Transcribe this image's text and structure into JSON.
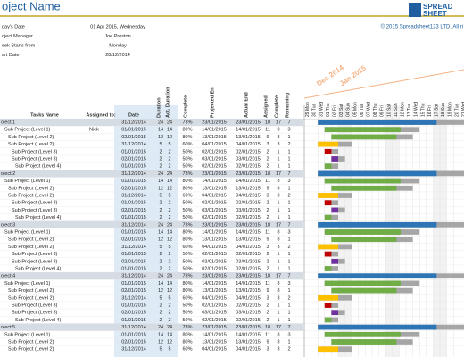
{
  "header": {
    "title": "oject Name",
    "logo_top": "SPREAD",
    "logo_bottom": "SHEET",
    "copyright": "© 2015 Spreadsheet123 LTD. All ri"
  },
  "info": [
    {
      "label": "day's Date",
      "value": "01 Apr 2015, Wednesday"
    },
    {
      "label": "oject Manager",
      "value": "Joe Preston"
    },
    {
      "label": "eek Starts from",
      "value": "Monday"
    },
    {
      "label": "art Date",
      "value": "28/12/2014"
    }
  ],
  "timeline": {
    "months": [
      "Dec 2014",
      "Jan 2015"
    ],
    "days": [
      "29 Mon",
      "30 Tue",
      "31 Wed",
      "01 Thu",
      "02 Fri",
      "03 Sat",
      "04 Sun",
      "05 Mon",
      "06 Tue",
      "07 Wed",
      "08 Thu",
      "09 Fri",
      "10 Sat",
      "11 Sun",
      "12 Mon",
      "13 Tue",
      "14 Wed",
      "15 Thu",
      "16 Fri",
      "17 Sat",
      "18 Sun",
      "19 Mon",
      "20 Tue",
      "21 Wed",
      "22 Thu",
      "23 Fri"
    ]
  },
  "table": {
    "columns": [
      "Tasks Name",
      "Assigned to:",
      "Date",
      "Duration",
      "Act. Duration",
      "Complete",
      "Projected En",
      "Actual End",
      "Assigned",
      "Complete",
      "Remaining"
    ],
    "rows": [
      {
        "cells": [
          "oject 1",
          null,
          "31/12/2014",
          24,
          24,
          "73%",
          "23/01/2015",
          "23/01/2015",
          18,
          17,
          7
        ],
        "color": "#2e75b6"
      },
      {
        "cells": [
          "Sub Project (Level 1)",
          "Nick",
          "01/01/2015",
          14,
          14,
          "80%",
          "14/01/2015",
          "14/01/2015",
          11,
          8,
          3
        ],
        "color": "#70ad47"
      },
      {
        "cells": [
          "Sub Project (Level 2)",
          null,
          "02/01/2015",
          12,
          12,
          "80%",
          "13/01/2015",
          "13/01/2015",
          9,
          8,
          1
        ],
        "color": "#70ad47"
      },
      {
        "cells": [
          "Sub Project (Level 2)",
          null,
          "31/12/2014",
          5,
          5,
          "60%",
          "04/01/2015",
          "04/01/2015",
          3,
          3,
          2
        ],
        "color": "#ffc000"
      },
      {
        "cells": [
          "Sub Project (Level 3)",
          null,
          "01/01/2015",
          2,
          2,
          "50%",
          "02/01/2015",
          "02/01/2015",
          2,
          1,
          1
        ],
        "color": "#c00000"
      },
      {
        "cells": [
          "Sub Project (Level 3)",
          null,
          "02/01/2015",
          2,
          2,
          "50%",
          "03/01/2015",
          "03/01/2015",
          2,
          1,
          1
        ],
        "color": "#7030a0"
      },
      {
        "cells": [
          "Sub Project (Level 4)",
          null,
          "01/01/2015",
          2,
          2,
          "50%",
          "02/01/2015",
          "02/01/2015",
          2,
          1,
          1
        ],
        "color": "#70ad47"
      },
      {
        "cells": [
          "oject 2",
          null,
          "31/12/2014",
          24,
          24,
          "73%",
          "23/01/2015",
          "23/01/2015",
          18,
          17,
          7
        ],
        "color": "#2e75b6"
      },
      {
        "cells": [
          "Sub Project (Level 1)",
          null,
          "01/01/2015",
          14,
          14,
          "80%",
          "14/01/2015",
          "14/01/2015",
          11,
          8,
          3
        ],
        "color": "#70ad47"
      },
      {
        "cells": [
          "Sub Project (Level 2)",
          null,
          "02/01/2015",
          12,
          12,
          "80%",
          "13/01/2015",
          "13/01/2015",
          9,
          8,
          1
        ],
        "color": "#70ad47"
      },
      {
        "cells": [
          "Sub Project (Level 2)",
          null,
          "31/12/2014",
          5,
          5,
          "60%",
          "04/01/2015",
          "04/01/2015",
          3,
          3,
          2
        ],
        "color": "#ffc000"
      },
      {
        "cells": [
          "Sub Project (Level 3)",
          null,
          "01/01/2015",
          2,
          2,
          "50%",
          "02/01/2015",
          "02/01/2015",
          2,
          1,
          1
        ],
        "color": "#c00000"
      },
      {
        "cells": [
          "Sub Project (Level 3)",
          null,
          "02/01/2015",
          2,
          2,
          "50%",
          "03/01/2015",
          "03/01/2015",
          2,
          1,
          1
        ],
        "color": "#7030a0"
      },
      {
        "cells": [
          "Sub Project (Level 4)",
          null,
          "01/01/2015",
          2,
          2,
          "50%",
          "02/01/2015",
          "02/01/2015",
          2,
          1,
          1
        ],
        "color": "#70ad47"
      },
      {
        "cells": [
          "oject 3",
          null,
          "31/12/2014",
          24,
          24,
          "73%",
          "23/01/2015",
          "23/01/2015",
          18,
          17,
          7
        ],
        "color": "#2e75b6"
      },
      {
        "cells": [
          "Sub Project (Level 1)",
          null,
          "01/01/2015",
          14,
          14,
          "80%",
          "14/01/2015",
          "14/01/2015",
          11,
          8,
          3
        ],
        "color": "#70ad47"
      },
      {
        "cells": [
          "Sub Project (Level 2)",
          null,
          "02/01/2015",
          12,
          12,
          "80%",
          "13/01/2015",
          "13/01/2015",
          9,
          8,
          1
        ],
        "color": "#70ad47"
      },
      {
        "cells": [
          "Sub Project (Level 2)",
          null,
          "31/12/2014",
          5,
          5,
          "60%",
          "04/01/2015",
          "04/01/2015",
          3,
          3,
          2
        ],
        "color": "#ffc000"
      },
      {
        "cells": [
          "Sub Project (Level 3)",
          null,
          "01/01/2015",
          2,
          2,
          "50%",
          "02/01/2015",
          "02/01/2015",
          2,
          1,
          1
        ],
        "color": "#c00000"
      },
      {
        "cells": [
          "Sub Project (Level 3)",
          null,
          "02/01/2015",
          2,
          2,
          "50%",
          "03/01/2015",
          "03/01/2015",
          2,
          1,
          1
        ],
        "color": "#7030a0"
      },
      {
        "cells": [
          "Sub Project (Level 4)",
          null,
          "01/01/2015",
          2,
          2,
          "50%",
          "02/01/2015",
          "02/01/2015",
          2,
          1,
          1
        ],
        "color": "#70ad47"
      },
      {
        "cells": [
          "oject 4",
          null,
          "31/12/2014",
          24,
          24,
          "73%",
          "23/01/2015",
          "23/01/2015",
          18,
          17,
          7
        ],
        "color": "#2e75b6"
      },
      {
        "cells": [
          "Sub Project (Level 1)",
          null,
          "01/01/2015",
          14,
          14,
          "80%",
          "14/01/2015",
          "14/01/2015",
          11,
          8,
          3
        ],
        "color": "#70ad47"
      },
      {
        "cells": [
          "Sub Project (Level 2)",
          null,
          "02/01/2015",
          12,
          12,
          "80%",
          "13/01/2015",
          "13/01/2015",
          9,
          8,
          1
        ],
        "color": "#70ad47"
      },
      {
        "cells": [
          "Sub Project (Level 2)",
          null,
          "31/12/2014",
          5,
          5,
          "60%",
          "04/01/2015",
          "04/01/2015",
          3,
          3,
          2
        ],
        "color": "#ffc000"
      },
      {
        "cells": [
          "Sub Project (Level 3)",
          null,
          "01/01/2015",
          2,
          2,
          "50%",
          "02/01/2015",
          "02/01/2015",
          2,
          1,
          1
        ],
        "color": "#c00000"
      },
      {
        "cells": [
          "Sub Project (Level 3)",
          null,
          "02/01/2015",
          2,
          2,
          "50%",
          "03/01/2015",
          "03/01/2015",
          2,
          1,
          1
        ],
        "color": "#7030a0"
      },
      {
        "cells": [
          "Sub Project (Level 4)",
          null,
          "01/01/2015",
          2,
          2,
          "50%",
          "02/01/2015",
          "02/01/2015",
          2,
          1,
          1
        ],
        "color": "#70ad47"
      },
      {
        "cells": [
          "oject 5",
          null,
          "31/12/2014",
          24,
          24,
          "73%",
          "23/01/2015",
          "23/01/2015",
          18,
          17,
          7
        ],
        "color": "#2e75b6"
      },
      {
        "cells": [
          "Sub Project (Level 1)",
          null,
          "01/01/2015",
          14,
          14,
          "80%",
          "14/01/2015",
          "14/01/2015",
          11,
          8,
          3
        ],
        "color": "#70ad47"
      },
      {
        "cells": [
          "Sub Project (Level 2)",
          null,
          "02/01/2015",
          12,
          12,
          "80%",
          "13/01/2015",
          "13/01/2015",
          9,
          8,
          1
        ],
        "color": "#70ad47"
      },
      {
        "cells": [
          "Sub Project (Level 2)",
          null,
          "31/12/2014",
          5,
          5,
          "60%",
          "04/01/2015",
          "04/01/2015",
          3,
          3,
          2
        ],
        "color": "#ffc000"
      }
    ]
  }
}
